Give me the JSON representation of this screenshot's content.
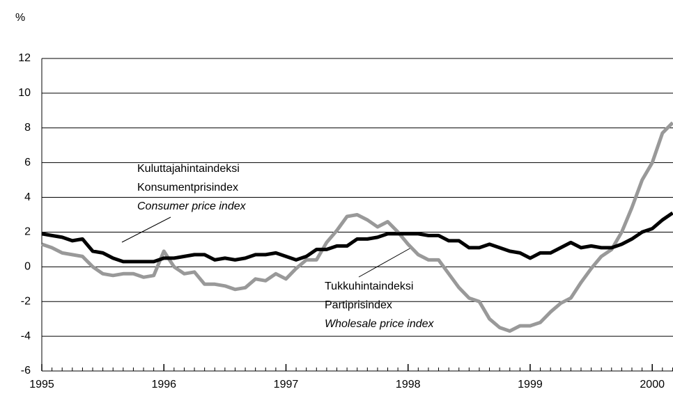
{
  "chart_data": {
    "type": "line",
    "y_unit": "%",
    "x": [
      1995,
      1995.083,
      1995.167,
      1995.25,
      1995.333,
      1995.417,
      1995.5,
      1995.583,
      1995.667,
      1995.75,
      1995.833,
      1995.917,
      1996,
      1996.083,
      1996.167,
      1996.25,
      1996.333,
      1996.417,
      1996.5,
      1996.583,
      1996.667,
      1996.75,
      1996.833,
      1996.917,
      1997,
      1997.083,
      1997.167,
      1997.25,
      1997.333,
      1997.417,
      1997.5,
      1997.583,
      1997.667,
      1997.75,
      1997.833,
      1997.917,
      1998,
      1998.083,
      1998.167,
      1998.25,
      1998.333,
      1998.417,
      1998.5,
      1998.583,
      1998.667,
      1998.75,
      1998.833,
      1998.917,
      1999,
      1999.083,
      1999.167,
      1999.25,
      1999.333,
      1999.417,
      1999.5,
      1999.583,
      1999.667,
      1999.75,
      1999.833,
      1999.917,
      2000,
      2000.083,
      2000.167
    ],
    "series": [
      {
        "color": "#999999",
        "width": 5,
        "values": [
          1.3,
          1.1,
          0.8,
          0.7,
          0.6,
          0.0,
          -0.4,
          -0.5,
          -0.4,
          -0.4,
          -0.6,
          -0.5,
          0.9,
          0.0,
          -0.4,
          -0.3,
          -1.0,
          -1.0,
          -1.1,
          -1.3,
          -1.2,
          -0.7,
          -0.8,
          -0.4,
          -0.7,
          -0.1,
          0.4,
          0.4,
          1.4,
          2.1,
          2.9,
          3.0,
          2.7,
          2.3,
          2.6,
          2.0,
          1.3,
          0.7,
          0.4,
          0.4,
          -0.4,
          -1.2,
          -1.8,
          -2.0,
          -3.0,
          -3.5,
          -3.7,
          -3.4,
          -3.4,
          -3.2,
          -2.6,
          -2.1,
          -1.8,
          -0.9,
          -0.1,
          0.6,
          1.0,
          2.0,
          3.4,
          5.0,
          6.0,
          7.7,
          8.3
        ]
      },
      {
        "color": "#000000",
        "width": 5,
        "values": [
          1.9,
          1.8,
          1.7,
          1.5,
          1.6,
          0.9,
          0.8,
          0.5,
          0.3,
          0.3,
          0.3,
          0.3,
          0.5,
          0.5,
          0.6,
          0.7,
          0.7,
          0.4,
          0.5,
          0.4,
          0.5,
          0.7,
          0.7,
          0.8,
          0.6,
          0.4,
          0.6,
          1.0,
          1.0,
          1.2,
          1.2,
          1.6,
          1.6,
          1.7,
          1.9,
          1.9,
          1.9,
          1.9,
          1.8,
          1.8,
          1.5,
          1.5,
          1.1,
          1.1,
          1.3,
          1.1,
          0.9,
          0.8,
          0.5,
          0.8,
          0.8,
          1.1,
          1.4,
          1.1,
          1.2,
          1.1,
          1.1,
          1.3,
          1.6,
          2.0,
          2.2,
          2.7,
          3.1
        ]
      }
    ],
    "annotations": [
      {
        "lines": [
          "Kuluttajahintaindeksi",
          "Konsumentprisindex",
          "Consumer price index"
        ]
      },
      {
        "lines": [
          "Tukkuhintaindeksi",
          "Partiprisindex",
          "Wholesale price index"
        ]
      }
    ],
    "xlim": [
      1995,
      2000.17
    ],
    "xticks": [
      1995,
      1996,
      1997,
      1998,
      1999,
      2000
    ],
    "ylim": [
      -6,
      12
    ],
    "yticks": [
      -6,
      -4,
      -2,
      0,
      2,
      4,
      6,
      8,
      10,
      12
    ],
    "grid": true
  }
}
